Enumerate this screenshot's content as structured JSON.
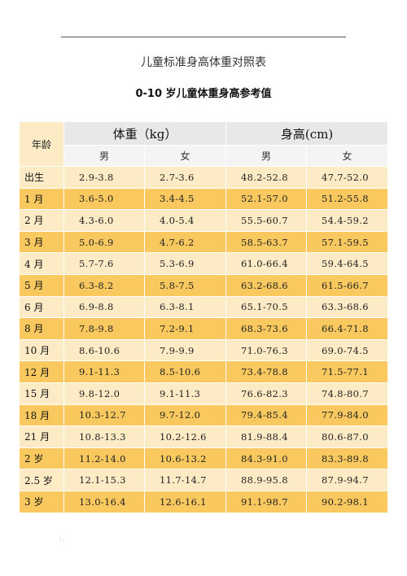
{
  "document": {
    "title": "儿童标准身高体重对照表",
    "subtitle": "0-10 岁儿童体重身高参考值",
    "top_mark": ".",
    "footer_mark": ": ."
  },
  "table": {
    "age_header": "年龄",
    "weight_header": "体重（kg）",
    "height_header": "身高(cm)",
    "male": "男",
    "female": "女",
    "rows": [
      {
        "age": "出生",
        "w_m": "2.9-3.8",
        "w_f": "2.7-3.6",
        "h_m": "48.2-52.8",
        "h_f": "47.7-52.0"
      },
      {
        "age": "1 月",
        "w_m": "3.6-5.0",
        "w_f": "3.4-4.5",
        "h_m": "52.1-57.0",
        "h_f": "51.2-55.8"
      },
      {
        "age": "2 月",
        "w_m": "4.3-6.0",
        "w_f": "4.0-5.4",
        "h_m": "55.5-60.7",
        "h_f": "54.4-59.2"
      },
      {
        "age": "3 月",
        "w_m": "5.0-6.9",
        "w_f": "4.7-6.2",
        "h_m": "58.5-63.7",
        "h_f": "57.1-59.5"
      },
      {
        "age": "4 月",
        "w_m": "5.7-7.6",
        "w_f": "5.3-6.9",
        "h_m": "61.0-66.4",
        "h_f": "59.4-64.5"
      },
      {
        "age": "5 月",
        "w_m": "6.3-8.2",
        "w_f": "5.8-7.5",
        "h_m": "63.2-68.6",
        "h_f": "61.5-66.7"
      },
      {
        "age": "6 月",
        "w_m": "6.9-8.8",
        "w_f": "6.3-8.1",
        "h_m": "65.1-70.5",
        "h_f": "63.3-68.6"
      },
      {
        "age": "8 月",
        "w_m": "7.8-9.8",
        "w_f": "7.2-9.1",
        "h_m": "68.3-73.6",
        "h_f": "66.4-71.8"
      },
      {
        "age": "10 月",
        "w_m": "8.6-10.6",
        "w_f": "7.9-9.9",
        "h_m": "71.0-76.3",
        "h_f": "69.0-74.5"
      },
      {
        "age": "12 月",
        "w_m": "9.1-11.3",
        "w_f": "8.5-10.6",
        "h_m": "73.4-78.8",
        "h_f": "71.5-77.1"
      },
      {
        "age": "15 月",
        "w_m": "9.8-12.0",
        "w_f": "9.1-11.3",
        "h_m": "76.6-82.3",
        "h_f": "74.8-80.7"
      },
      {
        "age": "18 月",
        "w_m": "10.3-12.7",
        "w_f": "9.7-12.0",
        "h_m": "79.4-85.4",
        "h_f": "77.9-84.0"
      },
      {
        "age": "21 月",
        "w_m": "10.8-13.3",
        "w_f": "10.2-12.6",
        "h_m": "81.9-88.4",
        "h_f": "80.6-87.0"
      },
      {
        "age": "2 岁",
        "w_m": "11.2-14.0",
        "w_f": "10.6-13.2",
        "h_m": "84.3-91.0",
        "h_f": "83.3-89.8"
      },
      {
        "age": "2.5 岁",
        "w_m": "12.1-15.3",
        "w_f": "11.7-14.7",
        "h_m": "88.9-95.8",
        "h_f": "87.9-94.7"
      },
      {
        "age": "3 岁",
        "w_m": "13.0-16.4",
        "w_f": "12.6-16.1",
        "h_m": "91.1-98.7",
        "h_f": "90.2-98.1"
      }
    ]
  }
}
